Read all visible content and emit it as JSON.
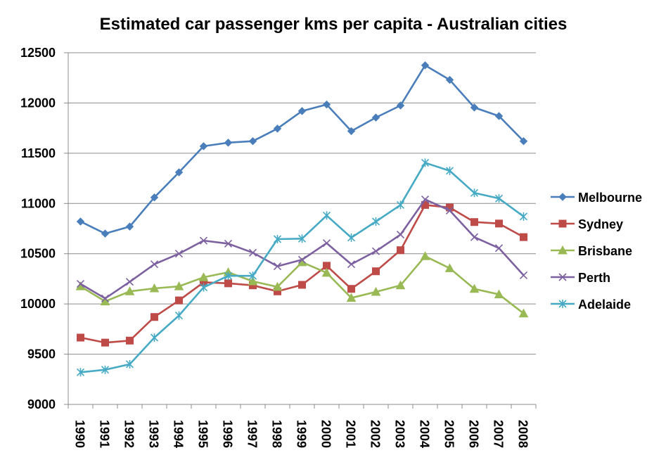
{
  "chart_data": {
    "type": "line",
    "title": "Estimated car passenger kms per capita - Australian cities",
    "xlabel": "",
    "ylabel": "",
    "ylim": [
      9000,
      12500
    ],
    "yticks": [
      "9000",
      "9500",
      "10000",
      "10500",
      "11000",
      "11500",
      "12000",
      "12500"
    ],
    "grid": true,
    "legend_position": "right",
    "categories": [
      "1990",
      "1991",
      "1992",
      "1993",
      "1994",
      "1995",
      "1996",
      "1997",
      "1998",
      "1999",
      "2000",
      "2001",
      "2002",
      "2003",
      "2004",
      "2005",
      "2006",
      "2007",
      "2008"
    ],
    "series": [
      {
        "name": "Melbourne",
        "color": "#4A7EBB",
        "marker": "diamond",
        "values": [
          10820,
          10700,
          10770,
          11060,
          11310,
          11570,
          11605,
          11620,
          11745,
          11920,
          11985,
          11720,
          11855,
          11975,
          12375,
          12230,
          11955,
          11870,
          11620
        ]
      },
      {
        "name": "Sydney",
        "color": "#BE4B48",
        "marker": "square",
        "values": [
          9665,
          9615,
          9635,
          9870,
          10035,
          10215,
          10205,
          10185,
          10125,
          10190,
          10380,
          10150,
          10325,
          10535,
          10985,
          10960,
          10815,
          10800,
          10665
        ]
      },
      {
        "name": "Brisbane",
        "color": "#98B954",
        "marker": "triangle",
        "values": [
          10175,
          10025,
          10125,
          10155,
          10175,
          10265,
          10315,
          10225,
          10170,
          10415,
          10310,
          10060,
          10120,
          10185,
          10475,
          10355,
          10150,
          10095,
          9905
        ]
      },
      {
        "name": "Perth",
        "color": "#7D60A0",
        "marker": "x",
        "values": [
          10200,
          10055,
          10220,
          10395,
          10500,
          10630,
          10600,
          10510,
          10375,
          10440,
          10605,
          10395,
          10525,
          10690,
          11040,
          10930,
          10665,
          10555,
          10285
        ]
      },
      {
        "name": "Adelaide",
        "color": "#46AAC5",
        "marker": "star",
        "values": [
          9320,
          9345,
          9400,
          9665,
          9885,
          10165,
          10280,
          10280,
          10645,
          10650,
          10880,
          10660,
          10820,
          10985,
          11405,
          11325,
          11105,
          11050,
          10870
        ]
      }
    ]
  }
}
